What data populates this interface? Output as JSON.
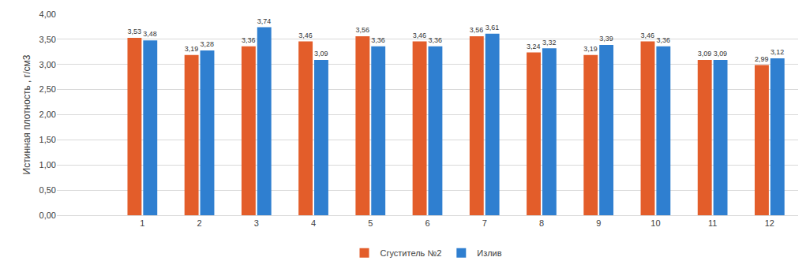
{
  "chart_data": {
    "type": "bar",
    "y_label": "Истинная плотность , г/см3",
    "categories": [
      null,
      "1",
      "2",
      "3",
      "4",
      "5",
      "6",
      "7",
      "8",
      "9",
      "10",
      "11",
      "12"
    ],
    "series": [
      {
        "name": "Сгуститель №2",
        "color": "#e35d2a",
        "values": [
          null,
          3.53,
          3.19,
          3.36,
          3.46,
          3.56,
          3.46,
          3.56,
          3.24,
          3.19,
          3.46,
          3.09,
          2.99
        ],
        "value_labels": [
          null,
          "3,53",
          "3,19",
          "3,36",
          "3,46",
          "3,56",
          "3,46",
          "3,56",
          "3,24",
          "3,19",
          "3,46",
          "3,09",
          "2,99"
        ]
      },
      {
        "name": "Излив",
        "color": "#2f7fd0",
        "values": [
          null,
          3.48,
          3.28,
          3.74,
          3.09,
          3.36,
          3.36,
          3.61,
          3.32,
          3.39,
          3.36,
          3.09,
          3.12
        ],
        "value_labels": [
          null,
          "3,48",
          "3,28",
          "3,74",
          "3,09",
          "3,36",
          "3,36",
          "3,61",
          "3,32",
          "3,39",
          "3,36",
          "3,09",
          "3,12"
        ]
      }
    ],
    "ylim": [
      0,
      4
    ],
    "yticks": [
      {
        "value": 0,
        "label": "0,00"
      },
      {
        "value": 0.5,
        "label": "0,50"
      },
      {
        "value": 1,
        "label": "1,00"
      },
      {
        "value": 1.5,
        "label": "1,50"
      },
      {
        "value": 2,
        "label": "2,00"
      },
      {
        "value": 2.5,
        "label": "2,50"
      },
      {
        "value": 3,
        "label": "3,00"
      },
      {
        "value": 3.5,
        "label": "3,50"
      },
      {
        "value": 4,
        "label": "4,00"
      }
    ],
    "grid": true,
    "data_labels": true,
    "legend": "bottom"
  }
}
